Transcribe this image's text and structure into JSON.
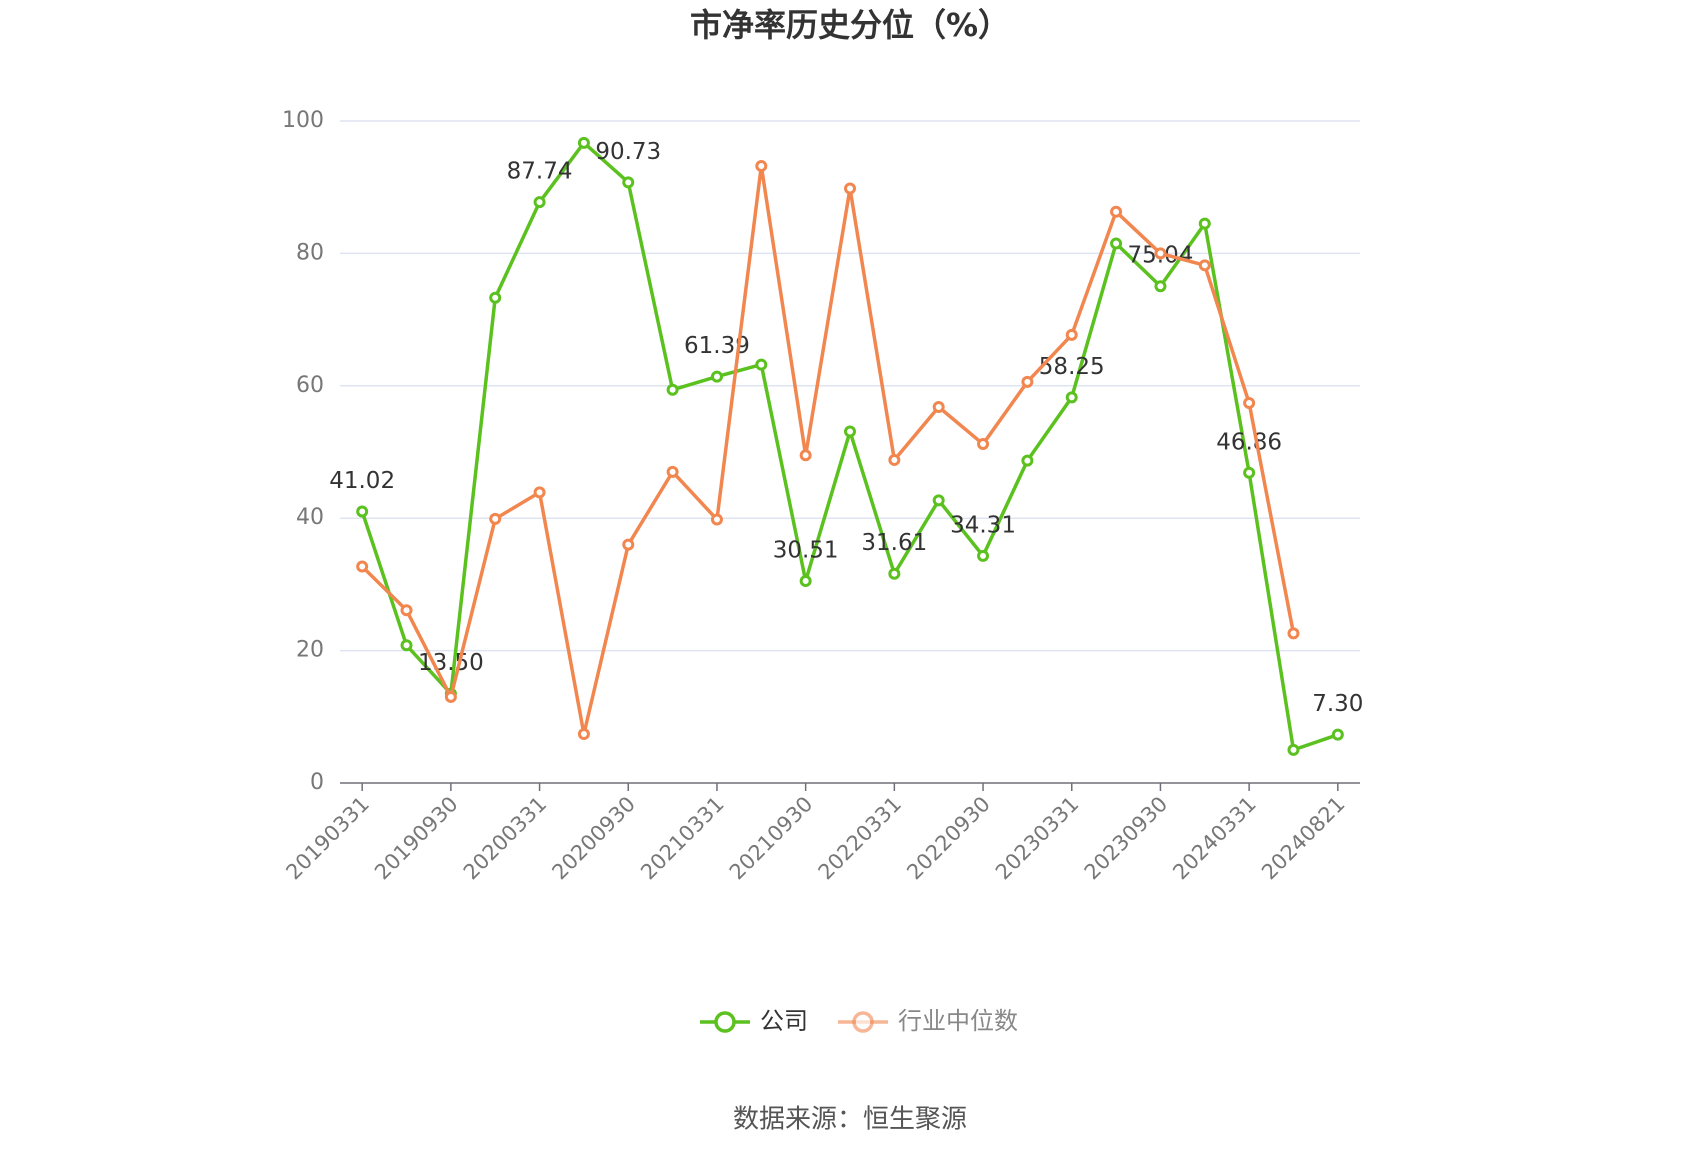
{
  "chart_data": {
    "type": "line",
    "title": "市净率历史分位（%）",
    "categories": [
      "20190331",
      null,
      "20190930",
      null,
      "20200331",
      null,
      "20200930",
      null,
      "20210331",
      null,
      "20210930",
      null,
      "20220331",
      null,
      "20220930",
      null,
      "20230331",
      null,
      "20230930",
      null,
      "20240331",
      null,
      "20240821"
    ],
    "series": [
      {
        "name": "公司",
        "color": "#5bc11f",
        "values": [
          41.02,
          20.8,
          13.5,
          73.3,
          87.74,
          96.7,
          90.73,
          59.4,
          61.39,
          63.2,
          30.51,
          53.1,
          31.61,
          42.7,
          34.31,
          48.7,
          58.25,
          81.5,
          75.04,
          84.5,
          46.86,
          5.0,
          7.3
        ],
        "value_labels": [
          "41.02",
          null,
          "13.50",
          null,
          "87.74",
          null,
          "90.73",
          null,
          "61.39",
          null,
          "30.51",
          null,
          "31.61",
          null,
          "34.31",
          null,
          "58.25",
          null,
          "75.04",
          null,
          "46.86",
          null,
          "7.30"
        ]
      },
      {
        "name": "行业中位数",
        "color": "#f2864f",
        "values": [
          32.7,
          26.1,
          13.0,
          39.9,
          43.9,
          7.4,
          36.0,
          47.0,
          39.8,
          93.2,
          49.5,
          89.8,
          48.8,
          56.8,
          51.2,
          60.6,
          67.7,
          86.3,
          80.0,
          78.2,
          57.4,
          22.6,
          null
        ]
      }
    ],
    "ylim": [
      0,
      100
    ],
    "yticks": [
      0,
      20,
      40,
      60,
      80,
      100
    ],
    "grid": true,
    "source": "数据来源：恒生聚源"
  }
}
